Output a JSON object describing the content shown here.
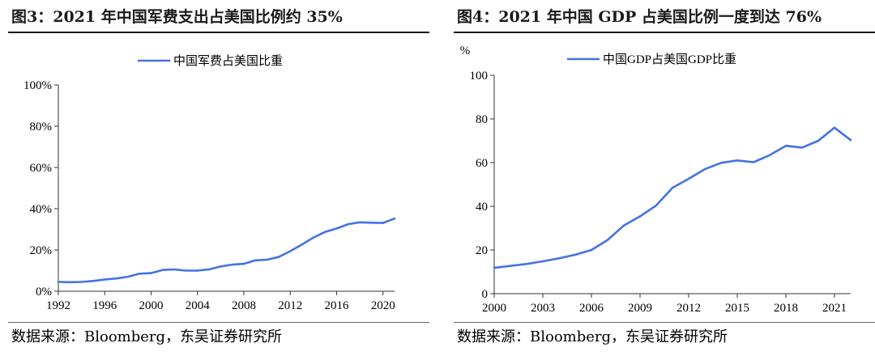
{
  "left": {
    "title": "图3：2021 年中国军费支出占美国比例约 35%",
    "source": "数据来源：Bloomberg，东吴证券研究所"
  },
  "right": {
    "title": "图4：2021 年中国 GDP 占美国比例一度到达 76%",
    "source": "数据来源：Bloomberg，东吴证券研究所"
  },
  "chart_data": [
    {
      "type": "line",
      "title": "",
      "xlabel": "",
      "ylabel": "",
      "xlim": [
        1992,
        2021
      ],
      "ylim": [
        0,
        100
      ],
      "y_format": "percent",
      "x_ticks": [
        1992,
        1996,
        2000,
        2004,
        2008,
        2012,
        2016,
        2020
      ],
      "y_ticks": [
        0,
        20,
        40,
        60,
        80,
        100
      ],
      "grid": false,
      "legend_position": "top-center",
      "series": [
        {
          "name": "中国军费占美国比重",
          "color": "#4472e6",
          "x": [
            1992,
            1993,
            1994,
            1995,
            1996,
            1997,
            1998,
            1999,
            2000,
            2001,
            2002,
            2003,
            2004,
            2005,
            2006,
            2007,
            2008,
            2009,
            2010,
            2011,
            2012,
            2013,
            2014,
            2015,
            2016,
            2017,
            2018,
            2019,
            2020,
            2021
          ],
          "y": [
            4.5,
            4.4,
            4.5,
            5.0,
            5.7,
            6.2,
            7.0,
            8.5,
            8.8,
            10.3,
            10.6,
            10.0,
            10.0,
            10.6,
            12.0,
            12.9,
            13.3,
            15.0,
            15.3,
            16.6,
            19.4,
            22.6,
            26.0,
            28.7,
            30.4,
            32.5,
            33.4,
            33.2,
            33.1,
            35.2
          ]
        }
      ]
    },
    {
      "type": "line",
      "title": "",
      "xlabel": "",
      "ylabel": "%",
      "xlim": [
        2000,
        2022
      ],
      "ylim": [
        0,
        100
      ],
      "y_format": "number",
      "x_ticks": [
        2000,
        2003,
        2006,
        2009,
        2012,
        2015,
        2018,
        2021
      ],
      "y_ticks": [
        0,
        20,
        40,
        60,
        80,
        100
      ],
      "grid": false,
      "legend_position": "top-center",
      "series": [
        {
          "name": "中国GDP占美国GDP比重",
          "color": "#4472e6",
          "x": [
            2000,
            2001,
            2002,
            2003,
            2004,
            2005,
            2006,
            2007,
            2008,
            2009,
            2010,
            2011,
            2012,
            2013,
            2014,
            2015,
            2016,
            2017,
            2018,
            2019,
            2020,
            2021,
            2022
          ],
          "y": [
            11.8,
            12.7,
            13.6,
            14.8,
            16.2,
            17.8,
            20.0,
            24.6,
            31.2,
            35.4,
            40.4,
            48.5,
            52.6,
            57.0,
            59.9,
            61.0,
            60.2,
            63.4,
            67.7,
            66.9,
            70.0,
            76.0,
            70.3
          ]
        }
      ]
    }
  ]
}
